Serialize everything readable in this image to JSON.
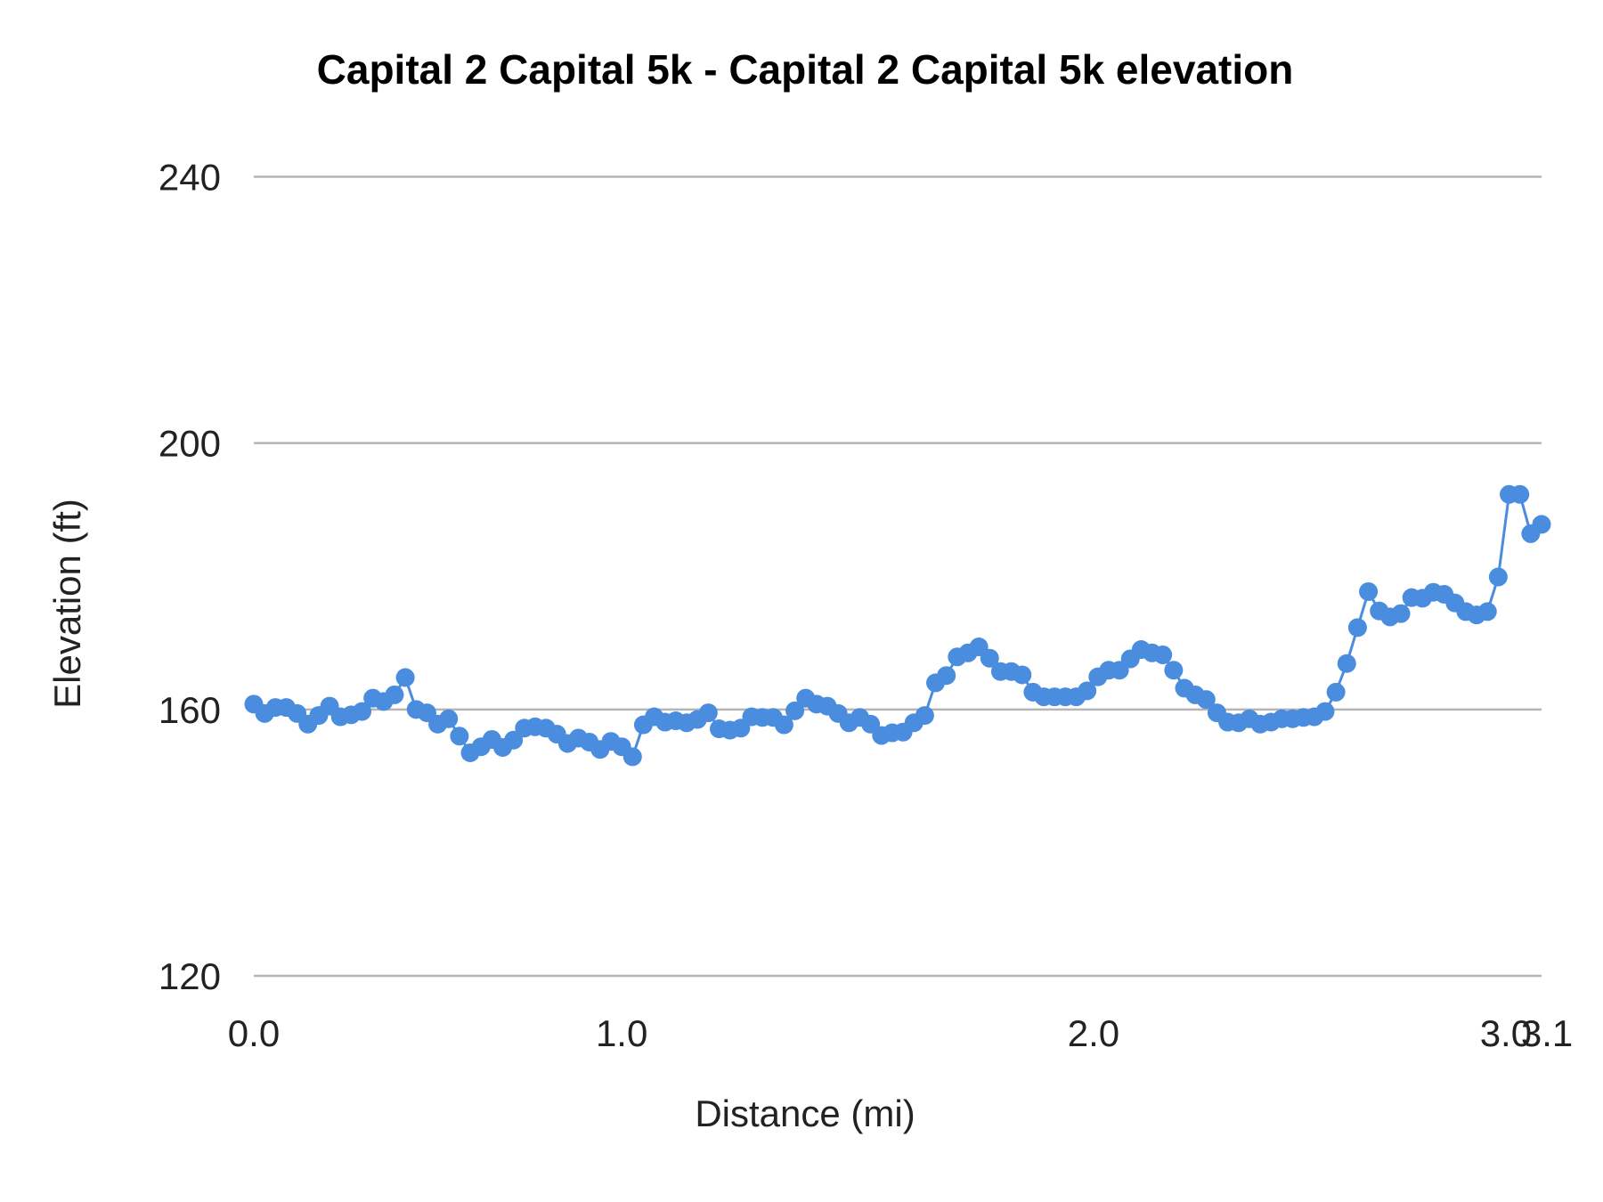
{
  "chart_data": {
    "type": "line",
    "title": "Capital 2 Capital 5k - Capital 2 Capital 5k elevation",
    "xlabel": "Distance (mi)",
    "ylabel": "Elevation (ft)",
    "ylim": [
      120,
      240
    ],
    "y_ticks": [
      120,
      160,
      200,
      240
    ],
    "x_ticks": [
      {
        "label": "0.0",
        "index": 0
      },
      {
        "label": "1.0",
        "index": 34
      },
      {
        "label": "2.0",
        "index": 77.6
      },
      {
        "label": "3.0",
        "index": 115.7
      },
      {
        "label": "3.1",
        "index": 119.5
      }
    ],
    "grid": true,
    "legend": "none",
    "series_color": "#4a8ddf",
    "values": [
      160.8,
      159.4,
      160.3,
      160.3,
      159.4,
      157.8,
      159.1,
      160.5,
      158.9,
      159.2,
      159.7,
      161.7,
      161.2,
      162.2,
      164.8,
      160.0,
      159.5,
      157.8,
      158.6,
      156.0,
      153.5,
      154.4,
      155.5,
      154.3,
      155.4,
      157.2,
      157.4,
      157.2,
      156.3,
      154.9,
      155.7,
      155.1,
      154.0,
      155.2,
      154.4,
      152.9,
      157.7,
      158.9,
      158.1,
      158.3,
      158.0,
      158.5,
      159.5,
      157.1,
      156.9,
      157.2,
      158.9,
      158.8,
      158.8,
      157.7,
      159.8,
      161.7,
      160.8,
      160.5,
      159.4,
      158.0,
      158.8,
      157.8,
      156.1,
      156.5,
      156.6,
      158.0,
      159.1,
      164.0,
      165.1,
      167.9,
      168.5,
      169.4,
      167.7,
      165.7,
      165.7,
      165.2,
      162.6,
      161.9,
      161.9,
      161.9,
      161.9,
      162.8,
      164.9,
      165.9,
      165.9,
      167.6,
      169.0,
      168.5,
      168.2,
      165.9,
      163.2,
      162.2,
      161.5,
      159.5,
      158.1,
      158.0,
      158.6,
      157.8,
      158.1,
      158.6,
      158.6,
      158.8,
      158.9,
      159.7,
      162.6,
      166.9,
      172.3,
      177.7,
      174.8,
      173.9,
      174.4,
      176.8,
      176.7,
      177.6,
      177.3,
      176.0,
      174.7,
      174.2,
      174.7,
      179.9,
      192.3,
      192.3,
      186.4,
      187.8
    ]
  }
}
